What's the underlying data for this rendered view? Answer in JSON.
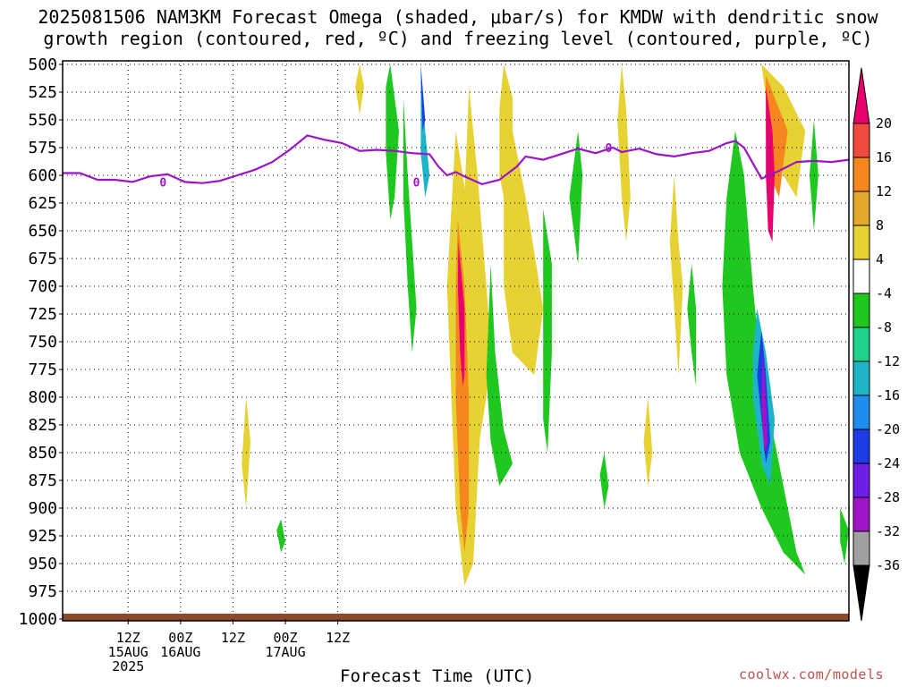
{
  "title": {
    "line1": "2025081506 NAM3KM Forecast Omega (shaded, μbar/s) for KMDW with dendritic snow",
    "line2": "growth region (contoured, red, ºC) and freezing level (contoured, purple, ºC)"
  },
  "xlabel": "Forecast Time (UTC)",
  "credit": "coolwx.com/models",
  "chart_data": {
    "type": "time-height cross section",
    "yaxis": {
      "label": "",
      "ticks": [
        "500",
        "525",
        "550",
        "575",
        "600",
        "625",
        "650",
        "675",
        "700",
        "725",
        "750",
        "775",
        "800",
        "825",
        "850",
        "875",
        "900",
        "925",
        "950",
        "975",
        "1000"
      ]
    },
    "xaxis": {
      "ticks": [
        {
          "line1": "12Z",
          "line2": "15AUG",
          "line3": "2025"
        },
        {
          "line1": "00Z",
          "line2": "16AUG",
          "line3": ""
        },
        {
          "line1": "12Z",
          "line2": "",
          "line3": ""
        },
        {
          "line1": "00Z",
          "line2": "17AUG",
          "line3": ""
        },
        {
          "line1": "12Z",
          "line2": "",
          "line3": ""
        }
      ]
    },
    "colorbar": {
      "labels": [
        "20",
        "16",
        "12",
        "8",
        "4",
        "-4",
        "-8",
        "-12",
        "-16",
        "-20",
        "-24",
        "-28",
        "-32",
        "-36"
      ],
      "colors": [
        "#e8006e",
        "#f04b3c",
        "#f5871e",
        "#e6a82a",
        "#e6d232",
        "#ffffff",
        "#1ec81e",
        "#1ed28c",
        "#1eb4c8",
        "#1e8cf0",
        "#1e3ce6",
        "#6e1ee6",
        "#a014c8",
        "#a0a0a0",
        "#000000"
      ]
    },
    "freezing_level": {
      "label": "0",
      "points": [
        [
          0,
          598
        ],
        [
          4,
          598
        ],
        [
          8,
          604
        ],
        [
          12,
          604
        ],
        [
          16,
          606
        ],
        [
          20,
          601
        ],
        [
          24,
          599
        ],
        [
          28,
          606
        ],
        [
          32,
          607
        ],
        [
          36,
          605
        ],
        [
          40,
          600
        ],
        [
          44,
          595
        ],
        [
          48,
          588
        ],
        [
          52,
          577
        ],
        [
          56,
          564
        ],
        [
          60,
          568
        ],
        [
          64,
          571
        ],
        [
          68,
          578
        ],
        [
          72,
          577
        ],
        [
          76,
          578
        ],
        [
          80,
          580
        ],
        [
          84,
          581
        ],
        [
          86,
          592
        ],
        [
          88,
          600
        ],
        [
          90,
          597
        ],
        [
          92,
          601
        ],
        [
          96,
          608
        ],
        [
          100,
          604
        ],
        [
          104,
          592
        ],
        [
          106,
          583
        ],
        [
          110,
          586
        ],
        [
          114,
          581
        ],
        [
          118,
          576
        ],
        [
          122,
          580
        ],
        [
          126,
          575
        ],
        [
          128,
          579
        ],
        [
          132,
          576
        ],
        [
          136,
          581
        ],
        [
          140,
          583
        ],
        [
          144,
          580
        ],
        [
          148,
          578
        ],
        [
          152,
          571
        ],
        [
          154,
          569
        ],
        [
          156,
          575
        ],
        [
          160,
          603
        ],
        [
          164,
          596
        ],
        [
          168,
          588
        ],
        [
          172,
          587
        ],
        [
          176,
          588
        ],
        [
          180,
          586
        ]
      ]
    },
    "omega_shading": [
      {
        "color": "#e6d232",
        "points": [
          [
            68,
            500
          ],
          [
            69,
            520
          ],
          [
            68,
            545
          ],
          [
            67,
            520
          ]
        ]
      },
      {
        "color": "#e6d232",
        "points": [
          [
            93,
            520
          ],
          [
            95,
            600
          ],
          [
            97,
            700
          ],
          [
            98,
            750
          ],
          [
            97,
            800
          ],
          [
            95,
            850
          ],
          [
            93,
            700
          ],
          [
            92,
            620
          ]
        ]
      },
      {
        "color": "#1ec81e",
        "points": [
          [
            75,
            500
          ],
          [
            77,
            560
          ],
          [
            76,
            620
          ],
          [
            75,
            640
          ],
          [
            74,
            580
          ],
          [
            74,
            520
          ]
        ]
      },
      {
        "color": "#1ec81e",
        "points": [
          [
            78,
            530
          ],
          [
            79,
            600
          ],
          [
            80,
            660
          ],
          [
            81,
            720
          ],
          [
            80,
            760
          ],
          [
            79,
            700
          ],
          [
            78,
            620
          ]
        ]
      },
      {
        "color": "#1eb4c8",
        "points": [
          [
            82,
            500
          ],
          [
            83,
            560
          ],
          [
            84,
            600
          ],
          [
            83,
            620
          ],
          [
            82,
            580
          ]
        ]
      },
      {
        "color": "#1e3ce6",
        "points": [
          [
            82,
            500
          ],
          [
            82.6,
            530
          ],
          [
            83,
            550
          ],
          [
            82.4,
            560
          ]
        ]
      },
      {
        "color": "#e6d232",
        "points": [
          [
            90,
            560
          ],
          [
            92,
            610
          ],
          [
            95,
            700
          ],
          [
            96,
            800
          ],
          [
            95,
            875
          ],
          [
            94,
            950
          ],
          [
            92,
            970
          ],
          [
            90,
            900
          ],
          [
            89,
            800
          ],
          [
            88,
            700
          ]
        ]
      },
      {
        "color": "#f5871e",
        "points": [
          [
            90.5,
            640
          ],
          [
            92,
            700
          ],
          [
            93,
            800
          ],
          [
            93,
            900
          ],
          [
            92,
            940
          ],
          [
            91,
            900
          ],
          [
            90,
            800
          ],
          [
            90,
            700
          ]
        ]
      },
      {
        "color": "#e8006e",
        "points": [
          [
            90.6,
            660
          ],
          [
            92,
            720
          ],
          [
            92,
            780
          ],
          [
            91.6,
            790
          ],
          [
            91,
            760
          ],
          [
            90.5,
            700
          ]
        ]
      },
      {
        "color": "#1ec81e",
        "points": [
          [
            98,
            680
          ],
          [
            99,
            760
          ],
          [
            101,
            830
          ],
          [
            103,
            860
          ],
          [
            100,
            880
          ],
          [
            98,
            840
          ],
          [
            97,
            780
          ]
        ]
      },
      {
        "color": "#e6d232",
        "points": [
          [
            101,
            500
          ],
          [
            103,
            530
          ],
          [
            103,
            600
          ],
          [
            102,
            640
          ],
          [
            100,
            600
          ],
          [
            100,
            540
          ]
        ]
      },
      {
        "color": "#e6d232",
        "points": [
          [
            103,
            560
          ],
          [
            106,
            620
          ],
          [
            110,
            720
          ],
          [
            108,
            780
          ],
          [
            103,
            760
          ],
          [
            101,
            700
          ],
          [
            101,
            620
          ]
        ]
      },
      {
        "color": "#1ec81e",
        "points": [
          [
            110,
            630
          ],
          [
            112,
            680
          ],
          [
            112,
            760
          ],
          [
            111,
            850
          ],
          [
            110,
            820
          ],
          [
            110,
            720
          ]
        ]
      },
      {
        "color": "#1ec81e",
        "points": [
          [
            118,
            560
          ],
          [
            119,
            600
          ],
          [
            118,
            680
          ],
          [
            116,
            620
          ]
        ]
      },
      {
        "color": "#e6d232",
        "points": [
          [
            128,
            500
          ],
          [
            129,
            540
          ],
          [
            130,
            620
          ],
          [
            129,
            660
          ],
          [
            128,
            620
          ],
          [
            127,
            550
          ]
        ]
      },
      {
        "color": "#e6d232",
        "points": [
          [
            140,
            600
          ],
          [
            141,
            660
          ],
          [
            142,
            700
          ],
          [
            141,
            780
          ],
          [
            140,
            720
          ],
          [
            139,
            660
          ]
        ]
      },
      {
        "color": "#1ec81e",
        "points": [
          [
            144,
            680
          ],
          [
            145,
            720
          ],
          [
            145,
            790
          ],
          [
            144,
            760
          ],
          [
            143,
            720
          ]
        ]
      },
      {
        "color": "#1ec81e",
        "points": [
          [
            154,
            560
          ],
          [
            156,
            600
          ],
          [
            158,
            700
          ],
          [
            160,
            780
          ],
          [
            162,
            820
          ],
          [
            165,
            880
          ],
          [
            168,
            940
          ],
          [
            170,
            960
          ],
          [
            165,
            940
          ],
          [
            160,
            900
          ],
          [
            155,
            850
          ],
          [
            152,
            780
          ],
          [
            151,
            700
          ],
          [
            152,
            620
          ]
        ]
      },
      {
        "color": "#1eb4c8",
        "points": [
          [
            159,
            720
          ],
          [
            161,
            760
          ],
          [
            163,
            820
          ],
          [
            162,
            880
          ],
          [
            160,
            860
          ],
          [
            158,
            800
          ],
          [
            158,
            760
          ]
        ]
      },
      {
        "color": "#1e3ce6",
        "points": [
          [
            160,
            740
          ],
          [
            161,
            780
          ],
          [
            162,
            840
          ],
          [
            161,
            860
          ],
          [
            160,
            820
          ],
          [
            159,
            780
          ]
        ]
      },
      {
        "color": "#a014c8",
        "points": [
          [
            160.3,
            760
          ],
          [
            161,
            800
          ],
          [
            161.4,
            840
          ],
          [
            160.6,
            850
          ],
          [
            160,
            810
          ]
        ]
      },
      {
        "color": "#e6d232",
        "points": [
          [
            160,
            500
          ],
          [
            165,
            520
          ],
          [
            170,
            560
          ],
          [
            168,
            620
          ],
          [
            165,
            600
          ],
          [
            162,
            560
          ]
        ]
      },
      {
        "color": "#f5871e",
        "points": [
          [
            161,
            510
          ],
          [
            164,
            540
          ],
          [
            166,
            560
          ],
          [
            164,
            620
          ],
          [
            162,
            600
          ],
          [
            161,
            560
          ]
        ]
      },
      {
        "color": "#e8006e",
        "points": [
          [
            161,
            520
          ],
          [
            162.5,
            560
          ],
          [
            163,
            600
          ],
          [
            162.5,
            660
          ],
          [
            161.5,
            650
          ],
          [
            161,
            600
          ]
        ]
      },
      {
        "color": "#1ec81e",
        "points": [
          [
            172,
            550
          ],
          [
            173,
            600
          ],
          [
            172,
            650
          ],
          [
            171,
            600
          ]
        ]
      },
      {
        "color": "#e6d232",
        "points": [
          [
            42,
            800
          ],
          [
            43,
            840
          ],
          [
            42,
            900
          ],
          [
            41,
            860
          ]
        ]
      },
      {
        "color": "#1ec81e",
        "points": [
          [
            50,
            910
          ],
          [
            51,
            930
          ],
          [
            50,
            940
          ],
          [
            49,
            920
          ]
        ]
      },
      {
        "color": "#e6d232",
        "points": [
          [
            134,
            800
          ],
          [
            135,
            850
          ],
          [
            134,
            880
          ],
          [
            133,
            840
          ]
        ]
      },
      {
        "color": "#1ec81e",
        "points": [
          [
            124,
            850
          ],
          [
            125,
            880
          ],
          [
            124,
            900
          ],
          [
            123,
            870
          ]
        ]
      },
      {
        "color": "#1ec81e",
        "points": [
          [
            178,
            900
          ],
          [
            180,
            920
          ],
          [
            179,
            950
          ],
          [
            178,
            930
          ]
        ]
      }
    ],
    "surface_color": "#8b4a2a"
  }
}
